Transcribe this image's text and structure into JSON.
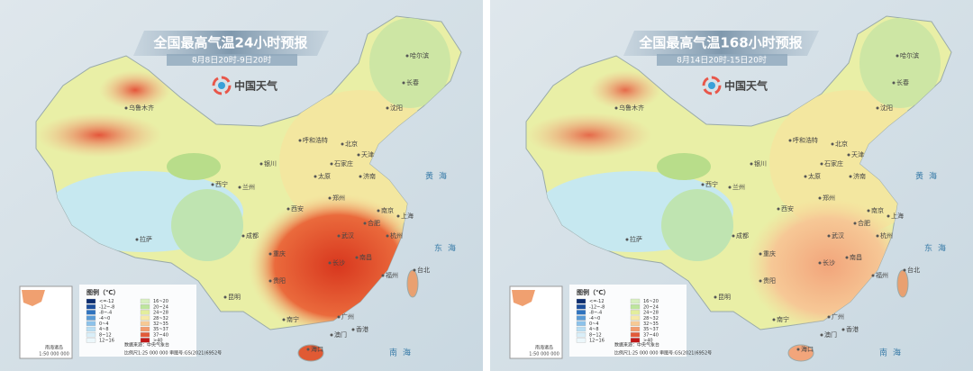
{
  "panels": [
    {
      "title": "全国最高气温24小时预报",
      "subtitle": "8月8日20时-9日20时",
      "logo": "中国天气"
    },
    {
      "title": "全国最高气温168小时预报",
      "subtitle": "8月14日20时-15日20时",
      "logo": "中国天气"
    }
  ],
  "map": {
    "cities": [
      "乌鲁木齐",
      "哈尔滨",
      "长春",
      "沈阳",
      "呼和浩特",
      "北京",
      "天津",
      "石家庄",
      "太原",
      "银川",
      "西宁",
      "兰州",
      "济南",
      "郑州",
      "西安",
      "南京",
      "合肥",
      "上海",
      "武汉",
      "杭州",
      "成都",
      "重庆",
      "拉萨",
      "长沙",
      "南昌",
      "福州",
      "台北",
      "贵阳",
      "昆明",
      "南宁",
      "广州",
      "香港",
      "澳门",
      "海口"
    ],
    "seas": [
      "黄海",
      "东海",
      "南海"
    ],
    "inset": [
      "南海诸岛",
      "1:50 000 000"
    ]
  },
  "legend": {
    "title": "图例（℃）",
    "items": [
      "<=-12",
      "-12~-8",
      "-8~-4",
      "-4~0",
      "0~4",
      "4~8",
      "8~12",
      "12~16",
      "16~20",
      "20~24",
      "24~28",
      "28~32",
      "32~35",
      "35~37",
      "37~40",
      ">40"
    ],
    "source": "数据来源：中央气象台",
    "scale": "比例尺1:25 000 000   审图号:GS(2021)6952号"
  }
}
